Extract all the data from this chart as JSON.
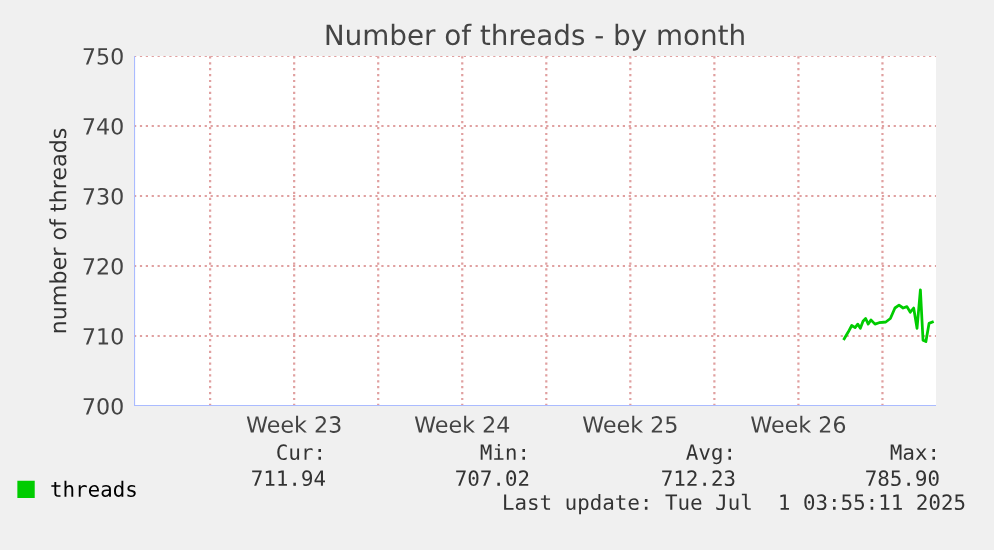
{
  "chart_data": {
    "type": "line",
    "title": "Number of threads - by month",
    "ylabel": "number of threads",
    "x": [
      "2025-06-27T11:47",
      "2025-06-27T15:55",
      "2025-06-27T19:17",
      "2025-06-27T22:38",
      "2025-06-28T01:17",
      "2025-06-28T03:55",
      "2025-06-28T06:34",
      "2025-06-28T09:12",
      "2025-06-28T11:47",
      "2025-06-28T14:29",
      "2025-06-28T18:33",
      "2025-06-28T22:38",
      "2025-06-29T05:21",
      "2025-06-29T09:55",
      "2025-06-29T14:29",
      "2025-06-29T18:33",
      "2025-06-29T22:38",
      "2025-06-30T02:29",
      "2025-06-30T05:50",
      "2025-06-30T09:12",
      "2025-06-30T12:33",
      "2025-06-30T15:55",
      "2025-06-30T18:33",
      "2025-06-30T21:26",
      "2025-07-01T00:33",
      "2025-07-01T03:55"
    ],
    "series": [
      {
        "name": "threads",
        "color": "#00cc00",
        "values": [
          709.6,
          710.6,
          711.5,
          711.2,
          711.7,
          711.1,
          712.1,
          712.5,
          711.7,
          712.3,
          711.7,
          711.9,
          712.0,
          712.5,
          714.0,
          714.4,
          714.0,
          714.2,
          713.4,
          714.0,
          711.1,
          716.6,
          709.4,
          709.2,
          711.8,
          712.0
        ]
      }
    ],
    "xlim": [
      "2025-05-28T21:55",
      "2025-07-01T07:31"
    ],
    "xticks": [
      {
        "value": "2025-06-01T02:00",
        "label": null
      },
      {
        "value": "2025-06-04T14:00",
        "label": "Week 23"
      },
      {
        "value": "2025-06-08T02:00",
        "label": null
      },
      {
        "value": "2025-06-11T14:00",
        "label": "Week 24"
      },
      {
        "value": "2025-06-15T02:00",
        "label": null
      },
      {
        "value": "2025-06-18T14:00",
        "label": "Week 25"
      },
      {
        "value": "2025-06-22T02:00",
        "label": null
      },
      {
        "value": "2025-06-25T14:00",
        "label": "Week 26"
      },
      {
        "value": "2025-06-29T02:00",
        "label": null
      }
    ],
    "ylim": [
      700,
      750
    ],
    "yticks": [
      700,
      710,
      720,
      730,
      740,
      750
    ],
    "grid": true,
    "legend": "bottom left",
    "marker": "none",
    "line_style": "solid",
    "annotations": [
      "Cur:",
      "711.94",
      "Min:",
      "707.02",
      "Avg:",
      "712.23",
      "Max:",
      "785.90",
      "Last update: Tue Jul  1 03:55:11 2025"
    ]
  }
}
